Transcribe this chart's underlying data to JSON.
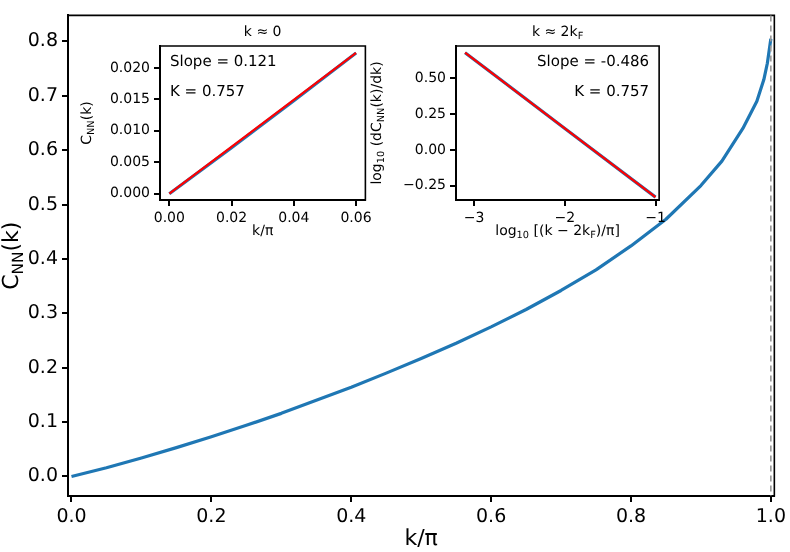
{
  "chart_data": [
    {
      "type": "line",
      "xlabel": "k/π",
      "ylabel": "C$_{NN}$(k)",
      "x": [
        0,
        0.05,
        0.1,
        0.15,
        0.2,
        0.25,
        0.3,
        0.35,
        0.4,
        0.45,
        0.5,
        0.55,
        0.6,
        0.65,
        0.7,
        0.75,
        0.8,
        0.85,
        0.9,
        0.93,
        0.96,
        0.98,
        0.99,
        0.995,
        1.0
      ],
      "series": [
        {
          "color": "#1f77b4",
          "values": [
            0,
            0.016,
            0.034,
            0.053,
            0.073,
            0.094,
            0.116,
            0.14,
            0.164,
            0.19,
            0.217,
            0.245,
            0.275,
            0.307,
            0.342,
            0.38,
            0.424,
            0.473,
            0.535,
            0.58,
            0.64,
            0.69,
            0.73,
            0.76,
            0.805
          ]
        }
      ],
      "xlim": [
        -0.005,
        1.005
      ],
      "ylim": [
        -0.036,
        0.848
      ],
      "xticks": [
        {
          "value": 0,
          "label": "0.0"
        },
        0.2,
        0.4,
        0.6,
        0.8,
        {
          "value": 1,
          "label": "1.0"
        }
      ],
      "yticks": [
        {
          "value": 0,
          "label": "0.0"
        },
        0.1,
        0.2,
        0.3,
        0.4,
        0.5,
        0.6,
        0.7,
        0.8
      ],
      "ref_lines": [
        {
          "axis": "x",
          "value": 1,
          "color": "#999999",
          "line_style": "dashed"
        }
      ]
    },
    {
      "type": "line",
      "title": "k ≈ 0",
      "xlabel": "k/π",
      "ylabel": "C$_{NN}$(k)",
      "series": [
        {
          "color": "#1f77b4",
          "x": [
            0,
            0.02,
            0.04,
            0.06
          ],
          "values": [
            0,
            0.0073,
            0.0148,
            0.0224
          ]
        },
        {
          "color": "#ff0000",
          "x": [
            0,
            0.06
          ],
          "values": [
            0,
            0.0224
          ]
        }
      ],
      "xlim": [
        -0.003,
        0.063
      ],
      "ylim": [
        -0.001,
        0.0235
      ],
      "xticks": [
        {
          "value": 0,
          "label": "0.00"
        },
        {
          "value": 0.02,
          "label": "0.02"
        },
        {
          "value": 0.04,
          "label": "0.04"
        },
        {
          "value": 0.06,
          "label": "0.06"
        }
      ],
      "yticks": [
        {
          "value": 0,
          "label": "0.000"
        },
        {
          "value": 0.005,
          "label": "0.005"
        },
        {
          "value": 0.01,
          "label": "0.010"
        },
        {
          "value": 0.015,
          "label": "0.015"
        },
        {
          "value": 0.02,
          "label": "0.020"
        }
      ],
      "annotations": [
        "Slope = 0.121",
        "K = 0.757"
      ]
    },
    {
      "type": "line",
      "title": "k ≈ 2k$_{F}$",
      "xlabel": "log$_{10}$ [(k − 2k$_{F}$)/π]",
      "ylabel": "log$_{10}$ (dC$_{NN}$(k)/dk)",
      "series": [
        {
          "color": "#1f77b4",
          "x": [
            -3.1,
            -2,
            -1
          ],
          "values": [
            0.68,
            0.15,
            -0.33
          ]
        },
        {
          "color": "#ff0000",
          "x": [
            -3.1,
            -1
          ],
          "values": [
            0.68,
            -0.33
          ]
        }
      ],
      "xlim": [
        -3.2,
        -0.96
      ],
      "ylim": [
        -0.35,
        0.727
      ],
      "xticks": [
        {
          "value": -3,
          "label": "−3"
        },
        {
          "value": -2,
          "label": "−2"
        },
        {
          "value": -1,
          "label": "−1"
        }
      ],
      "yticks": [
        {
          "value": -0.25,
          "label": "−0.25"
        },
        {
          "value": 0,
          "label": "0.00"
        },
        {
          "value": 0.25,
          "label": "0.25"
        },
        {
          "value": 0.5,
          "label": "0.50"
        }
      ],
      "annotations": [
        "Slope = -0.486",
        "K = 0.757"
      ]
    }
  ]
}
